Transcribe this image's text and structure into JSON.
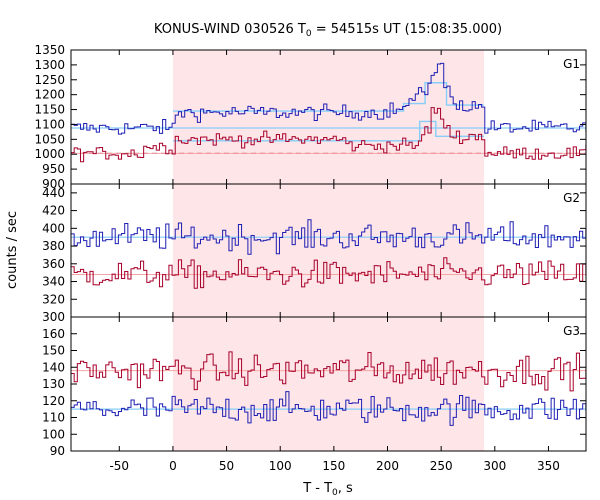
{
  "chart_data": {
    "type": "line",
    "title_main": "KONUS-WIND 030526 T",
    "title_sub": "0",
    "title_rest": " = 54515s UT (15:08:35.000)",
    "xlabel_main": "T - T",
    "xlabel_sub": "0",
    "xlabel_rest": ", s",
    "ylabel": "counts / sec",
    "xlim": [
      -95,
      385
    ],
    "xticks": [
      "-50",
      "0",
      "50",
      "100",
      "150",
      "200",
      "250",
      "300",
      "350"
    ],
    "xtick_values": [
      -50,
      0,
      50,
      100,
      150,
      200,
      250,
      300,
      350
    ],
    "shaded_interval": [
      0,
      290
    ],
    "colors": {
      "blue": "#1f1fb4",
      "red": "#a8002a",
      "model": "#87cefa",
      "shade": "#fde5e8"
    },
    "panels": [
      {
        "label": "G1",
        "ylim": [
          900,
          1350
        ],
        "yticks": [
          900,
          950,
          1000,
          1050,
          1100,
          1150,
          1200,
          1250,
          1300,
          1350
        ],
        "background": {
          "blue": 1088,
          "red": 1003
        },
        "series": [
          {
            "color": "blue",
            "base": 1088,
            "noise": 18,
            "segments": [
              [
                0,
                200,
                1140
              ],
              [
                200,
                215,
                1150
              ],
              [
                215,
                228,
                1175
              ],
              [
                228,
                236,
                1215
              ],
              [
                236,
                242,
                1255
              ],
              [
                242,
                250,
                1290
              ],
              [
                250,
                256,
                1230
              ],
              [
                256,
                270,
                1175
              ],
              [
                270,
                290,
                1160
              ]
            ]
          },
          {
            "color": "red",
            "base": 1003,
            "noise": 16,
            "segments": [
              [
                -30,
                0,
                1025
              ],
              [
                0,
                160,
                1050
              ],
              [
                160,
                230,
                1030
              ],
              [
                230,
                240,
                1080
              ],
              [
                240,
                248,
                1145
              ],
              [
                248,
                256,
                1100
              ],
              [
                256,
                290,
                1060
              ]
            ]
          }
        ],
        "model": [
          {
            "color": "blue",
            "segments": [
              [
                0,
                215,
                1145
              ],
              [
                215,
                235,
                1170
              ],
              [
                235,
                255,
                1240
              ],
              [
                255,
                290,
                1165
              ]
            ]
          },
          {
            "color": "red",
            "segments": [
              [
                0,
                230,
                1045
              ],
              [
                230,
                245,
                1110
              ],
              [
                245,
                290,
                1060
              ]
            ]
          }
        ]
      },
      {
        "label": "G2",
        "ylim": [
          300,
          450
        ],
        "yticks": [
          300,
          320,
          340,
          360,
          380,
          400,
          420,
          440
        ],
        "background": {
          "blue": 390,
          "red": 348
        },
        "series": [
          {
            "color": "blue",
            "base": 390,
            "noise": 11,
            "segments": []
          },
          {
            "color": "red",
            "base": 348,
            "noise": 11,
            "segments": []
          }
        ],
        "model": []
      },
      {
        "label": "G3",
        "ylim": [
          90,
          170
        ],
        "yticks": [
          90,
          100,
          110,
          120,
          130,
          140,
          150,
          160
        ],
        "background": {
          "blue": 115,
          "red": 138
        },
        "series": [
          {
            "color": "blue",
            "base": 115,
            "noise": 6,
            "segments": []
          },
          {
            "color": "red",
            "base": 138,
            "noise": 7,
            "segments": []
          }
        ],
        "model": []
      }
    ]
  }
}
